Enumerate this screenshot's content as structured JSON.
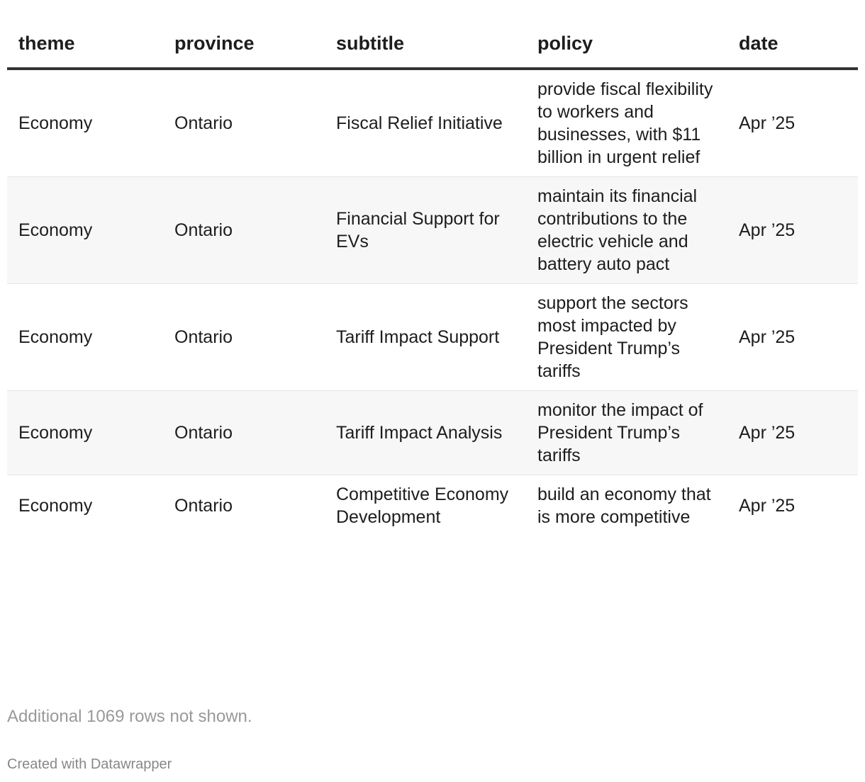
{
  "table": {
    "columns": [
      "theme",
      "province",
      "subtitle",
      "policy",
      "date"
    ],
    "rows": [
      [
        "Economy",
        "Ontario",
        "Fiscal Relief Initiative",
        "provide fiscal flexibility to workers and businesses, with $11 billion in urgent relief",
        "Apr ’25"
      ],
      [
        "Economy",
        "Ontario",
        "Financial Support for EVs",
        "maintain its financial contributions to the electric vehicle and battery auto pact",
        "Apr ’25"
      ],
      [
        "Economy",
        "Ontario",
        "Tariff Impact Support",
        "support the sectors most impacted by President Trump’s tariffs",
        "Apr ’25"
      ],
      [
        "Economy",
        "Ontario",
        "Tariff Impact Analysis",
        "monitor the impact of President Trump’s tariffs",
        "Apr ’25"
      ],
      [
        "Economy",
        "Ontario",
        "Competitive Economy Development",
        "build an economy that is more competitive",
        "Apr ’25"
      ]
    ]
  },
  "footer": {
    "note": "Additional 1069 rows not shown.",
    "credit": "Created with Datawrapper"
  },
  "colors": {
    "header_rule": "#333333",
    "stripe": "#f7f7f7",
    "muted": "#999999"
  }
}
